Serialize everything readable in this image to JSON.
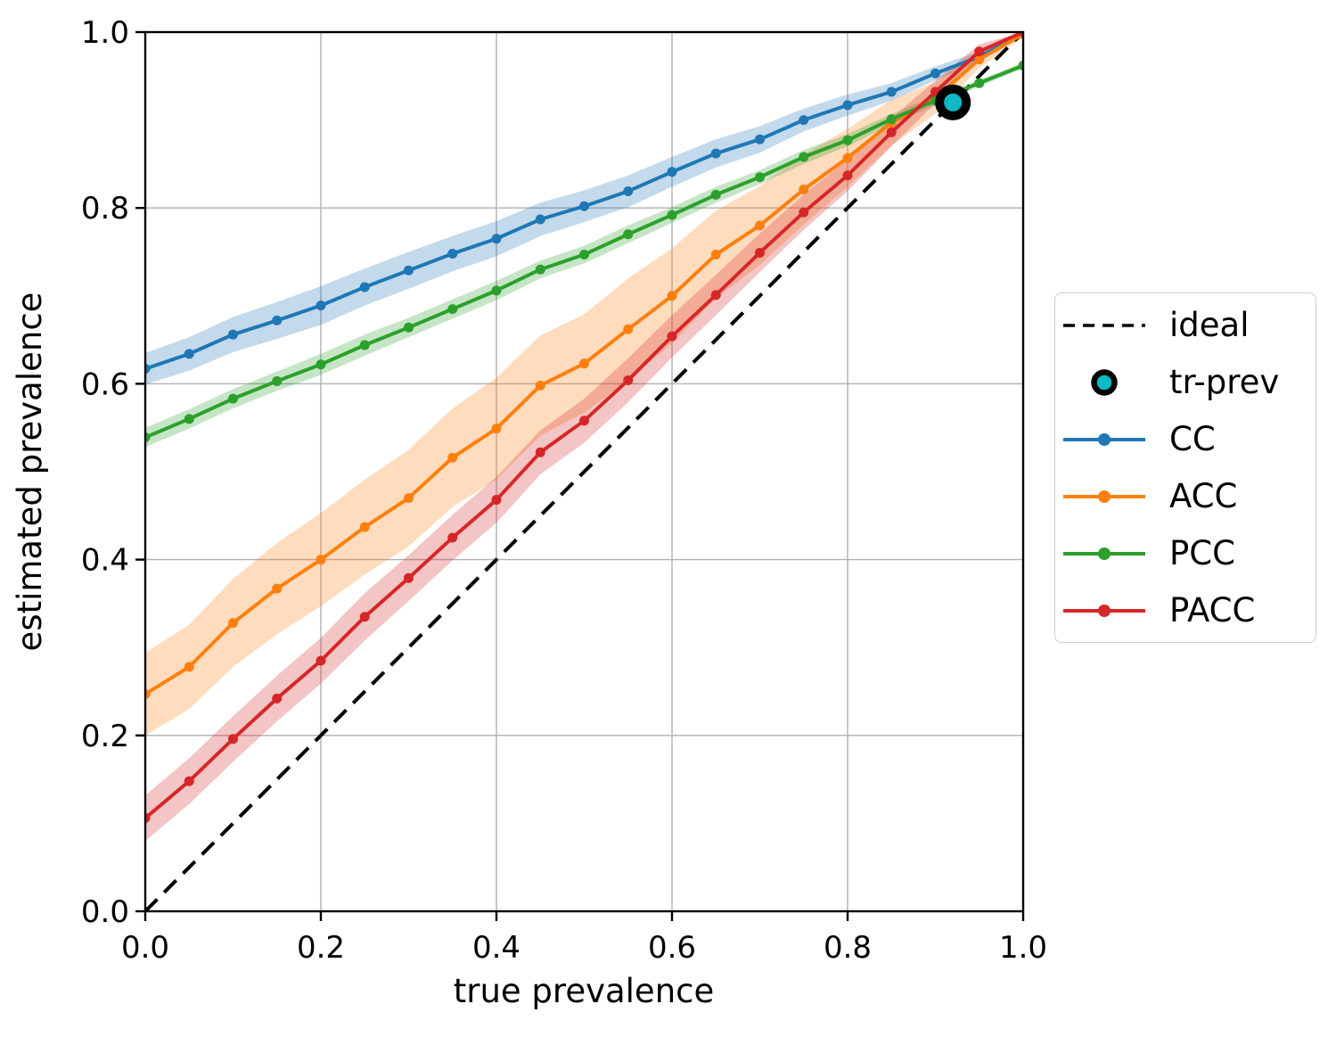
{
  "figure": {
    "background": "#ffffff",
    "grid_color": "#b0b0b0",
    "spine_color": "#000000"
  },
  "legend": {
    "position": "right",
    "items": [
      {
        "label": "ideal",
        "type": "dashed-line",
        "color": "#000000"
      },
      {
        "label": "tr-prev",
        "type": "circle",
        "color": "#0cb9c4",
        "edge": "#000000"
      },
      {
        "label": "CC",
        "type": "line-marker",
        "color": "#1f77b4"
      },
      {
        "label": "ACC",
        "type": "line-marker",
        "color": "#ff7f0e"
      },
      {
        "label": "PCC",
        "type": "line-marker",
        "color": "#2ca02c"
      },
      {
        "label": "PACC",
        "type": "line-marker",
        "color": "#d62728"
      }
    ]
  },
  "chart_data": {
    "type": "line",
    "title": "",
    "xlabel": "true prevalence",
    "ylabel": "estimated prevalence",
    "xlim": [
      0.0,
      1.0
    ],
    "ylim": [
      0.0,
      1.0
    ],
    "grid": true,
    "legend_position": "right",
    "xticks": [
      "0.0",
      "0.2",
      "0.4",
      "0.6",
      "0.8",
      "1.0"
    ],
    "yticks": [
      "0.0",
      "0.2",
      "0.4",
      "0.6",
      "0.8",
      "1.0"
    ],
    "x": [
      0.0,
      0.05,
      0.1,
      0.15,
      0.2,
      0.25,
      0.3,
      0.35,
      0.4,
      0.45,
      0.5,
      0.55,
      0.6,
      0.65,
      0.7,
      0.75,
      0.8,
      0.85,
      0.9,
      0.95,
      1.0
    ],
    "ideal_line": {
      "label": "ideal",
      "from": [
        0,
        0
      ],
      "to": [
        1,
        1
      ],
      "style": "dashed",
      "color": "#000000"
    },
    "tr_prev_point": {
      "label": "tr-prev",
      "x": 0.92,
      "y": 0.92,
      "fill": "#0cb9c4",
      "edge": "#000000"
    },
    "series": [
      {
        "name": "CC",
        "color": "#1f77b4",
        "values": [
          0.617,
          0.634,
          0.656,
          0.672,
          0.689,
          0.71,
          0.729,
          0.748,
          0.765,
          0.787,
          0.802,
          0.819,
          0.841,
          0.862,
          0.878,
          0.9,
          0.917,
          0.932,
          0.953,
          0.972,
          0.998
        ],
        "band_halfwidth": [
          0.018,
          0.019,
          0.02,
          0.021,
          0.022,
          0.021,
          0.021,
          0.02,
          0.02,
          0.019,
          0.018,
          0.018,
          0.017,
          0.016,
          0.015,
          0.013,
          0.012,
          0.01,
          0.008,
          0.006,
          0.003
        ]
      },
      {
        "name": "ACC",
        "color": "#ff7f0e",
        "values": [
          0.247,
          0.278,
          0.328,
          0.367,
          0.4,
          0.437,
          0.47,
          0.516,
          0.549,
          0.598,
          0.623,
          0.662,
          0.7,
          0.747,
          0.78,
          0.821,
          0.857,
          0.897,
          0.925,
          0.969,
          0.998
        ],
        "band_halfwidth": [
          0.047,
          0.048,
          0.05,
          0.052,
          0.053,
          0.054,
          0.055,
          0.056,
          0.058,
          0.057,
          0.056,
          0.058,
          0.054,
          0.05,
          0.045,
          0.04,
          0.033,
          0.026,
          0.018,
          0.01,
          0.004
        ]
      },
      {
        "name": "PCC",
        "color": "#2ca02c",
        "values": [
          0.539,
          0.56,
          0.583,
          0.603,
          0.622,
          0.644,
          0.664,
          0.685,
          0.706,
          0.73,
          0.747,
          0.77,
          0.792,
          0.815,
          0.835,
          0.858,
          0.877,
          0.901,
          0.922,
          0.942,
          0.962
        ],
        "band_halfwidth": [
          0.011,
          0.011,
          0.011,
          0.011,
          0.012,
          0.012,
          0.011,
          0.011,
          0.011,
          0.01,
          0.01,
          0.01,
          0.009,
          0.009,
          0.008,
          0.008,
          0.007,
          0.006,
          0.005,
          0.004,
          0.003
        ]
      },
      {
        "name": "PACC",
        "color": "#d62728",
        "values": [
          0.106,
          0.148,
          0.196,
          0.242,
          0.285,
          0.335,
          0.379,
          0.425,
          0.468,
          0.522,
          0.558,
          0.604,
          0.654,
          0.701,
          0.749,
          0.795,
          0.837,
          0.886,
          0.932,
          0.978,
          1.0
        ],
        "band_halfwidth": [
          0.026,
          0.026,
          0.026,
          0.026,
          0.026,
          0.027,
          0.026,
          0.026,
          0.026,
          0.025,
          0.025,
          0.025,
          0.024,
          0.023,
          0.022,
          0.02,
          0.018,
          0.016,
          0.013,
          0.008,
          0.004
        ]
      }
    ]
  }
}
